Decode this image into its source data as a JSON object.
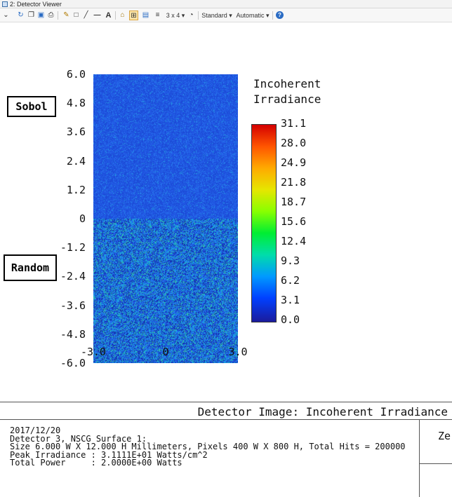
{
  "window": {
    "title": "2: Detector Viewer"
  },
  "toolbar": {
    "layout_label": "3 x 4 ▾",
    "style_label": "Standard ▾",
    "scale_label": "Automatic ▾",
    "icons": [
      "chevron-down-icon",
      "refresh-icon",
      "copy-icon",
      "save-icon",
      "print-icon",
      "pencil-icon",
      "rectangle-icon",
      "line-icon",
      "dash-icon",
      "text-icon",
      "lock-icon",
      "fit-icon",
      "window-icon",
      "layers-icon",
      "clock-icon",
      "help-icon"
    ]
  },
  "plot": {
    "y_ticks": [
      "6.0",
      "4.8",
      "3.6",
      "2.4",
      "1.2",
      "0",
      "-1.2",
      "-2.4",
      "-3.6",
      "-4.8",
      "-6.0"
    ],
    "x_ticks": [
      "-3.0",
      "0",
      "3.0"
    ],
    "legend_title_line1": "Incoherent",
    "legend_title_line2": "Irradiance",
    "colorbar_labels": [
      "31.1",
      "28.0",
      "24.9",
      "21.8",
      "18.7",
      "15.6",
      "12.4",
      "9.3",
      "6.2",
      "3.1",
      "0.0"
    ],
    "annotations": {
      "top": "Sobol",
      "bottom": "Random"
    },
    "colors": {
      "background_blue": "#1f55d6",
      "accent_cyan": "#1fb8c8",
      "colorbar_max": "#d40000",
      "colorbar_min": "#1b1b9c"
    }
  },
  "info": {
    "title": "Detector Image: Incoherent Irradiance",
    "lines": [
      "2017/12/20",
      "Detector 3, NSCG Surface 1:",
      "Size 6.000 W X 12.000 H Millimeters, Pixels 400 W X 800 H, Total Hits = 200000",
      "Peak Irradiance : 3.1111E+01 Watts/cm^2",
      "Total Power     : 2.0000E+00 Watts"
    ],
    "side_label": "Ze"
  }
}
